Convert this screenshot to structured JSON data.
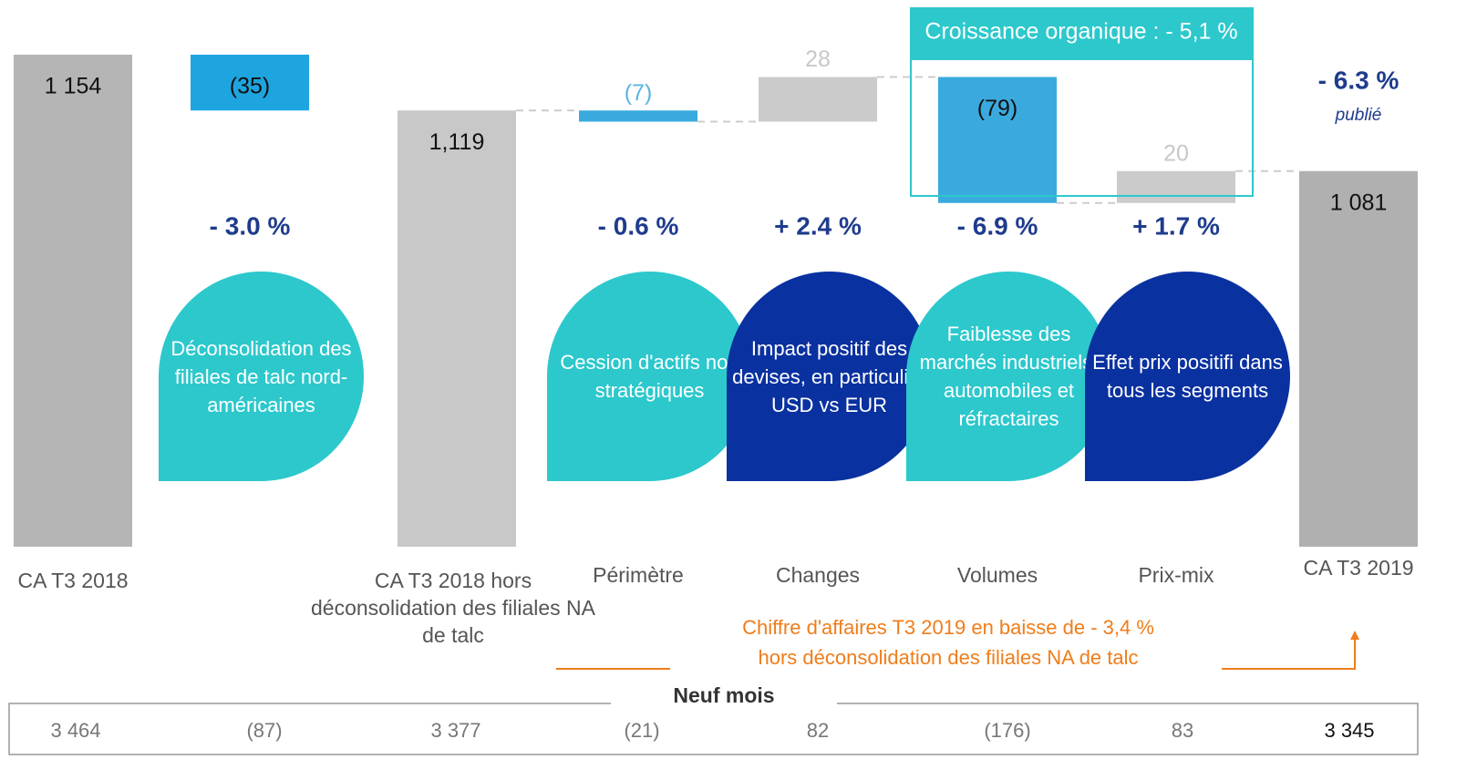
{
  "chart_data": {
    "type": "waterfall",
    "categories": [
      "CA T3 2018",
      null,
      "CA T3 2018 hors déconsolidation des filiales NA de talc",
      "Périmètre",
      "Changes",
      "Volumes",
      "Prix-mix",
      "CA T3 2019"
    ],
    "values": [
      1154,
      -35,
      1119,
      -7,
      28,
      -79,
      20,
      1081
    ],
    "value_labels": [
      "1 154",
      "(35)",
      "1,119",
      "(7)",
      "28",
      "(79)",
      "20",
      "1 081"
    ],
    "measure": [
      "total",
      "relative",
      "total",
      "relative",
      "relative",
      "relative",
      "relative",
      "total"
    ],
    "colors": [
      "#b5b5b5",
      "#1ea5e0",
      "#c8c8c8",
      "#3aaade",
      "#cbcbcb",
      "#3aaade",
      "#cbcbcb",
      "#b0b0b0"
    ],
    "label_colors": [
      "#111",
      "#111",
      "#111",
      "#5ab4e0",
      "#c8c8c8",
      "#111",
      "#c8c8c8",
      "#111"
    ],
    "percent_labels": [
      null,
      "- 3.0 %",
      null,
      "- 0.6 %",
      "+ 2.4 %",
      "- 6.9 %",
      "+ 1.7 %",
      "- 6.3 %"
    ],
    "published_note": "publié",
    "notes": [
      null,
      {
        "text": "Déconsolidation des filiales de talc nord-américaines",
        "color": "#2cc8cc"
      },
      null,
      {
        "text": "Cession d'actifs non stratégiques",
        "color": "#2cc8cc"
      },
      {
        "text": "Impact positif des devises, en particulier USD vs EUR",
        "color": "#0a31a0"
      },
      {
        "text": "Faiblesse des marchés industriels, automobiles et réfractaires",
        "color": "#2cc8cc"
      },
      {
        "text": "Effet prix positifi dans tous les segments",
        "color": "#0a31a0"
      },
      null
    ],
    "organic_box": "Croissance organique : - 5,1 %",
    "orange_note": [
      "Chiffre d'affaires T3 2019 en baisse de - 3,4 %",
      "hors déconsolidation des filiales NA de talc"
    ],
    "nine_months": {
      "title": "Neuf mois",
      "values": [
        "3 464",
        "(87)",
        "3 377",
        "(21)",
        "82",
        "(176)",
        "83",
        "3 345"
      ]
    }
  }
}
